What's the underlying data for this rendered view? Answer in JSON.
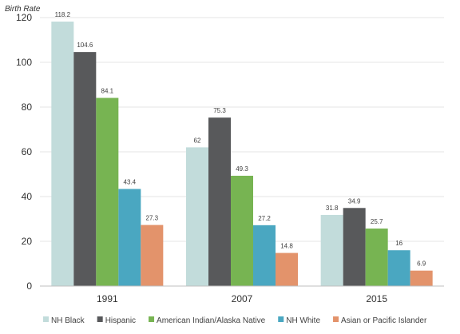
{
  "chart_data": {
    "type": "bar",
    "ylabel": "Birth Rate",
    "ylim": [
      0,
      120
    ],
    "ytick_step": 20,
    "grid": true,
    "legend_position": "bottom",
    "categories": [
      "1991",
      "2007",
      "2015"
    ],
    "series": [
      {
        "name": "NH Black",
        "color": "#c2dcdb",
        "values": [
          118.2,
          62,
          31.8
        ],
        "labels": [
          "118.2",
          "62",
          "31.8"
        ]
      },
      {
        "name": "Hispanic",
        "color": "#58595b",
        "values": [
          104.6,
          75.3,
          34.9
        ],
        "labels": [
          "104.6",
          "75.3",
          "34.9"
        ]
      },
      {
        "name": "American Indian/Alaska Native",
        "color": "#77b452",
        "values": [
          84.1,
          49.3,
          25.7
        ],
        "labels": [
          "84.1",
          "49.3",
          "25.7"
        ]
      },
      {
        "name": "NH White",
        "color": "#4aa7c1",
        "values": [
          43.4,
          27.2,
          16
        ],
        "labels": [
          "43.4",
          "27.2",
          "16"
        ]
      },
      {
        "name": "Asian or Pacific Islander",
        "color": "#e3936b",
        "values": [
          27.3,
          14.8,
          6.9
        ],
        "labels": [
          "27.3",
          "14.8",
          "6.9"
        ]
      }
    ]
  }
}
